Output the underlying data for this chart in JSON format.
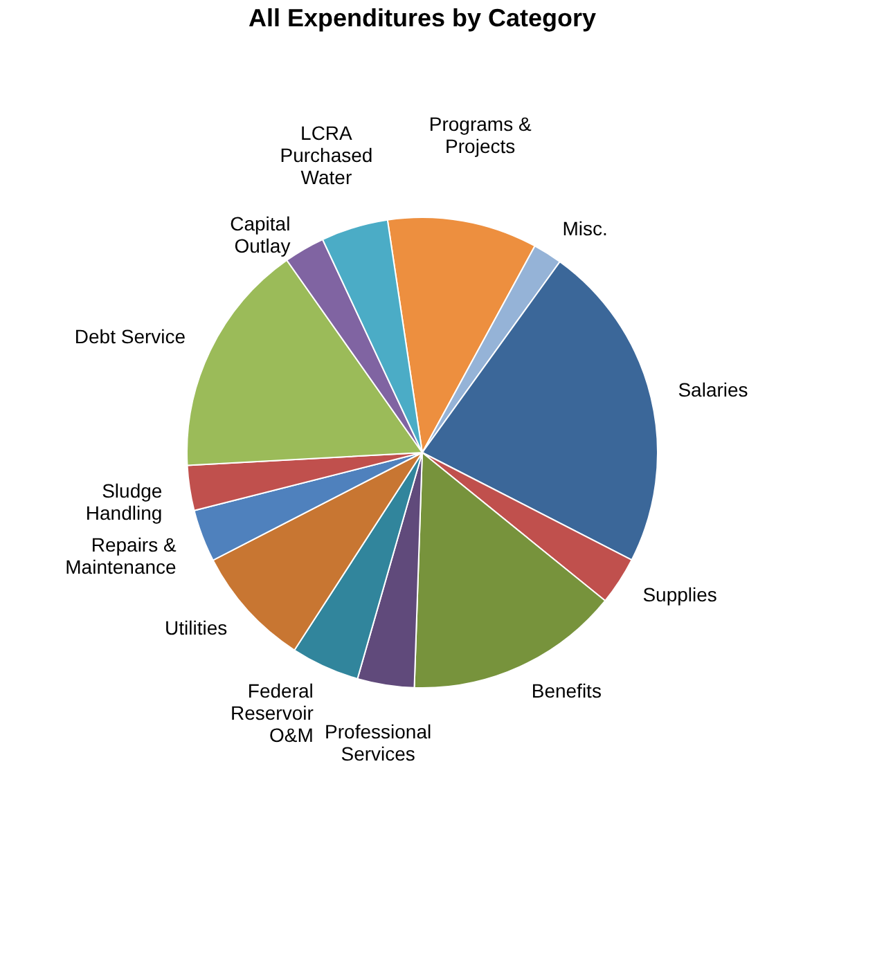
{
  "chart_data": {
    "type": "pie",
    "title": "All Expenditures by Category",
    "categories": [
      "Programs & Projects",
      "Misc.",
      "Salaries",
      "Supplies",
      "Benefits",
      "Professional Services",
      "Federal Reservoir O&M",
      "Utilities",
      "Repairs & Maintenance",
      "Sludge Handling",
      "Debt Service",
      "Capital Outlay",
      "LCRA Purchased Water"
    ],
    "values": [
      10.3,
      2.0,
      22.6,
      3.3,
      14.7,
      3.9,
      4.7,
      8.3,
      3.6,
      3.1,
      16.1,
      2.8,
      4.6
    ],
    "colors": [
      "#ed8f3f",
      "#95b3d7",
      "#3b6799",
      "#c0504d",
      "#77933c",
      "#604a7b",
      "#31859c",
      "#c87632",
      "#4f81bd",
      "#c0504d",
      "#9bbb59",
      "#8064a2",
      "#4bacc6"
    ]
  }
}
